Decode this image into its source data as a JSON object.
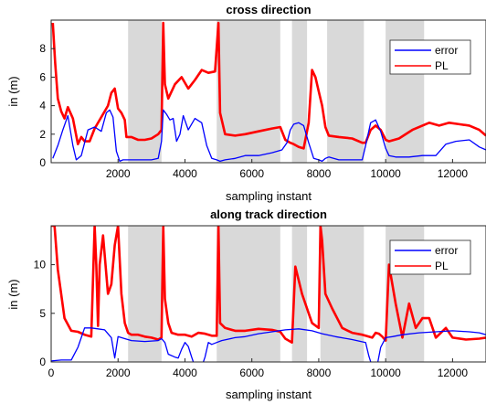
{
  "chart_data": [
    {
      "type": "line",
      "title": "cross direction",
      "xlabel": "sampling instant",
      "ylabel": "in (m)",
      "xlim": [
        0,
        13000
      ],
      "ylim": [
        0,
        10
      ],
      "xticks": [
        2000,
        4000,
        6000,
        8000,
        10000,
        12000
      ],
      "yticks": [
        0,
        2,
        4,
        6,
        8
      ],
      "grid": false,
      "legend": "top-right",
      "shaded_regions": [
        [
          2300,
          3300
        ],
        [
          4950,
          6850
        ],
        [
          7200,
          7650
        ],
        [
          8250,
          9350
        ],
        [
          10000,
          11150
        ]
      ],
      "colors": {
        "error": "#0000ff",
        "PL": "#ff0000",
        "shade": "#d9d9d9"
      },
      "series": [
        {
          "name": "error",
          "x": [
            50,
            200,
            350,
            500,
            650,
            750,
            900,
            1100,
            1300,
            1500,
            1650,
            1750,
            1850,
            1950,
            2050,
            2150,
            2250,
            2400,
            2600,
            2800,
            3000,
            3200,
            3300,
            3350,
            3450,
            3550,
            3650,
            3750,
            3850,
            3950,
            4100,
            4300,
            4500,
            4650,
            4800,
            4950,
            5050,
            5200,
            5500,
            5800,
            6200,
            6600,
            6900,
            7050,
            7150,
            7250,
            7400,
            7550,
            7700,
            7850,
            8000,
            8100,
            8200,
            8300,
            8600,
            9000,
            9300,
            9400,
            9550,
            9700,
            9850,
            10000,
            10100,
            10300,
            10700,
            11100,
            11300,
            11500,
            11800,
            12100,
            12500,
            12800,
            13000
          ],
          "values": [
            0.3,
            1.2,
            2.3,
            3.3,
            1.2,
            0.2,
            0.5,
            2.3,
            2.5,
            2.2,
            3.5,
            3.7,
            3.2,
            0.8,
            0.1,
            0.2,
            0.2,
            0.2,
            0.2,
            0.2,
            0.2,
            0.3,
            1.5,
            3.7,
            3.4,
            3.0,
            3.1,
            1.5,
            2.0,
            3.3,
            2.3,
            3.1,
            2.8,
            1.2,
            0.3,
            0.2,
            0.1,
            0.2,
            0.3,
            0.5,
            0.5,
            0.7,
            0.9,
            1.4,
            2.3,
            2.7,
            2.8,
            2.6,
            1.4,
            0.3,
            0.2,
            0.1,
            0.3,
            0.4,
            0.2,
            0.2,
            0.2,
            1.2,
            2.8,
            3.0,
            2.2,
            1.0,
            0.5,
            0.4,
            0.4,
            0.5,
            0.5,
            0.5,
            1.3,
            1.5,
            1.6,
            1.1,
            0.9
          ]
        },
        {
          "name": "PL",
          "x": [
            50,
            120,
            200,
            300,
            400,
            500,
            650,
            800,
            900,
            1000,
            1150,
            1300,
            1500,
            1700,
            1800,
            1900,
            2000,
            2100,
            2200,
            2250,
            2400,
            2600,
            2800,
            3000,
            3200,
            3300,
            3350,
            3400,
            3500,
            3700,
            3900,
            4100,
            4300,
            4500,
            4700,
            4900,
            5000,
            5050,
            5200,
            5500,
            5800,
            6200,
            6600,
            6850,
            7000,
            7150,
            7250,
            7400,
            7550,
            7700,
            7800,
            7900,
            8000,
            8100,
            8200,
            8300,
            8600,
            9000,
            9300,
            9400,
            9550,
            9700,
            9850,
            10000,
            10100,
            10400,
            10800,
            11100,
            11300,
            11600,
            11900,
            12200,
            12500,
            12800,
            13000
          ],
          "values": [
            9.8,
            7.0,
            4.5,
            3.6,
            3.1,
            3.9,
            3.1,
            1.3,
            1.8,
            1.5,
            1.5,
            2.4,
            3.2,
            4.0,
            4.9,
            5.2,
            3.8,
            3.5,
            3.0,
            1.8,
            1.8,
            1.6,
            1.6,
            1.7,
            2.0,
            2.3,
            9.8,
            5.5,
            4.5,
            5.5,
            6.0,
            5.2,
            5.8,
            6.5,
            6.3,
            6.4,
            9.8,
            3.5,
            2.0,
            1.9,
            2.0,
            2.2,
            2.4,
            2.5,
            1.6,
            1.4,
            1.3,
            1.1,
            1.0,
            2.8,
            6.5,
            6.0,
            5.0,
            4.0,
            2.5,
            1.9,
            1.8,
            1.7,
            1.4,
            1.4,
            2.3,
            2.6,
            2.3,
            1.6,
            1.5,
            1.7,
            2.3,
            2.6,
            2.8,
            2.6,
            2.8,
            2.7,
            2.6,
            2.3,
            1.9
          ]
        }
      ]
    },
    {
      "type": "line",
      "title": "along track direction",
      "xlabel": "sampling instant",
      "ylabel": "in (m)",
      "xlim": [
        0,
        13000
      ],
      "ylim": [
        0,
        14
      ],
      "xticks": [
        0,
        2000,
        4000,
        6000,
        8000,
        10000,
        12000
      ],
      "yticks": [
        0,
        5,
        10
      ],
      "grid": false,
      "legend": "top-right",
      "shaded_regions": [
        [
          2300,
          3300
        ],
        [
          4950,
          6850
        ],
        [
          7200,
          7650
        ],
        [
          8050,
          9350
        ],
        [
          10000,
          11150
        ]
      ],
      "colors": {
        "error": "#0000ff",
        "PL": "#ff0000",
        "shade": "#d9d9d9"
      },
      "series": [
        {
          "name": "error",
          "x": [
            0,
            300,
            600,
            800,
            1000,
            1200,
            1400,
            1600,
            1800,
            1900,
            2000,
            2200,
            2400,
            2800,
            3200,
            3300,
            3400,
            3500,
            3700,
            3800,
            3900,
            4000,
            4100,
            4200,
            4400,
            4600,
            4700,
            4800,
            4950,
            5100,
            5500,
            5800,
            6200,
            6600,
            7000,
            7400,
            7800,
            8100,
            8500,
            9000,
            9400,
            9500,
            9600,
            9700,
            9750,
            9850,
            10000,
            10200,
            10500,
            11000,
            11500,
            12000,
            12500,
            12800,
            13000
          ],
          "values": [
            0.1,
            0.2,
            0.2,
            1.5,
            3.5,
            3.5,
            3.4,
            3.3,
            2.5,
            0.4,
            2.6,
            2.4,
            2.2,
            2.1,
            2.2,
            2.4,
            2.0,
            0.8,
            0.5,
            0.4,
            1.3,
            2.0,
            1.6,
            0.5,
            -1.5,
            0.5,
            2.0,
            1.8,
            2.0,
            2.2,
            2.5,
            2.6,
            2.9,
            3.1,
            3.3,
            3.4,
            3.2,
            2.9,
            2.6,
            2.3,
            2.0,
            0.6,
            -0.5,
            0.0,
            -0.3,
            1.5,
            2.5,
            2.6,
            2.8,
            3.0,
            3.1,
            3.2,
            3.1,
            3.0,
            2.8
          ]
        },
        {
          "name": "PL",
          "x": [
            0,
            100,
            200,
            400,
            600,
            800,
            1000,
            1200,
            1300,
            1350,
            1400,
            1450,
            1550,
            1700,
            1800,
            1900,
            2000,
            2100,
            2200,
            2300,
            2400,
            2600,
            2800,
            3000,
            3200,
            3300,
            3350,
            3400,
            3500,
            3600,
            3800,
            4000,
            4200,
            4400,
            4600,
            4800,
            4950,
            5000,
            5050,
            5200,
            5500,
            5800,
            6200,
            6600,
            6850,
            7000,
            7100,
            7200,
            7300,
            7500,
            7700,
            7800,
            8000,
            8050,
            8100,
            8200,
            8400,
            8700,
            9000,
            9300,
            9400,
            9600,
            9700,
            9800,
            9900,
            10000,
            10100,
            10300,
            10500,
            10700,
            10900,
            11100,
            11300,
            11500,
            11800,
            12000,
            12400,
            12800,
            13000
          ],
          "values": [
            14,
            14,
            9.5,
            4.5,
            3.2,
            3.1,
            2.8,
            2.6,
            14,
            10.0,
            3.7,
            10.0,
            13.0,
            7.0,
            8.0,
            12.0,
            14,
            7.0,
            4.0,
            3.0,
            2.8,
            2.8,
            2.6,
            2.5,
            2.3,
            2.5,
            14,
            6.5,
            4.0,
            3.0,
            2.8,
            2.8,
            2.6,
            3.0,
            2.9,
            2.7,
            2.7,
            14,
            4.0,
            3.5,
            3.2,
            3.2,
            3.4,
            3.3,
            3.1,
            2.4,
            2.2,
            2.0,
            9.8,
            7.0,
            5.0,
            4.0,
            3.5,
            14,
            12.5,
            7.0,
            5.5,
            3.5,
            3.0,
            2.8,
            2.7,
            2.5,
            3.0,
            2.9,
            2.6,
            2.2,
            10.0,
            6.0,
            2.5,
            6.0,
            3.5,
            4.5,
            4.5,
            2.5,
            3.5,
            2.5,
            2.3,
            2.4,
            2.5
          ]
        }
      ]
    }
  ]
}
